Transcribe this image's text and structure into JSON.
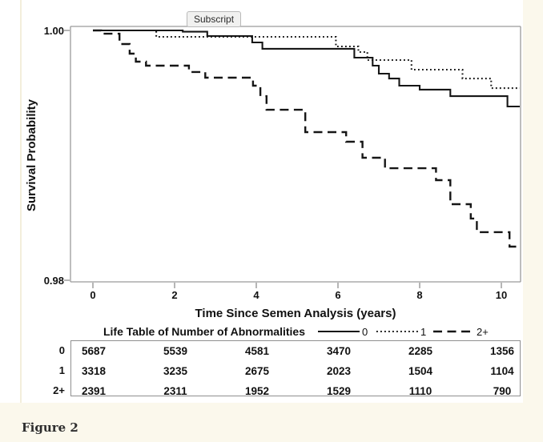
{
  "tooltip": {
    "label": "Subscript"
  },
  "caption": {
    "label": "Figure 2"
  },
  "chart_data": {
    "type": "line",
    "subtype": "kaplan-meier-step",
    "title": "",
    "xlabel": "Time Since Semen Analysis (years)",
    "ylabel": "Survival Probability",
    "xlim": [
      -0.55,
      10.47
    ],
    "ylim": [
      0.98,
      1.0
    ],
    "xticks": [
      0,
      2,
      4,
      6,
      8,
      10
    ],
    "yticks": [
      1.0,
      0.98
    ],
    "xtick_labels": [
      "0",
      "2",
      "4",
      "6",
      "8",
      "10"
    ],
    "ytick_labels": [
      "1.00",
      "0.98"
    ],
    "grid": false,
    "legend_position": "below-axis",
    "legend_title": "Life Table of Number of Abnormalities",
    "line_color": "#161616",
    "series": [
      {
        "name": "0",
        "style": "solid",
        "points": [
          [
            0,
            1.0
          ],
          [
            2.2,
            0.9999
          ],
          [
            2.8,
            0.99955
          ],
          [
            3.9,
            0.99904
          ],
          [
            4.15,
            0.99853
          ],
          [
            6.4,
            0.99782
          ],
          [
            6.85,
            0.99718
          ],
          [
            7.0,
            0.99654
          ],
          [
            7.25,
            0.99615
          ],
          [
            7.5,
            0.99558
          ],
          [
            8.0,
            0.99526
          ],
          [
            8.75,
            0.99474
          ],
          [
            10.15,
            0.99391
          ]
        ]
      },
      {
        "name": "1",
        "style": "dotted",
        "points": [
          [
            0,
            1.0
          ],
          [
            1.55,
            0.99949
          ],
          [
            5.95,
            0.99872
          ],
          [
            6.5,
            0.99827
          ],
          [
            6.72,
            0.99763
          ],
          [
            7.8,
            0.99686
          ],
          [
            9.05,
            0.99615
          ],
          [
            9.75,
            0.99538
          ]
        ]
      },
      {
        "name": "2+",
        "style": "dashed",
        "points": [
          [
            0,
            1.0
          ],
          [
            0.2,
            0.99974
          ],
          [
            0.65,
            0.99891
          ],
          [
            0.9,
            0.99814
          ],
          [
            1.05,
            0.9975
          ],
          [
            1.3,
            0.99718
          ],
          [
            2.35,
            0.99667
          ],
          [
            2.75,
            0.99622
          ],
          [
            3.92,
            0.99558
          ],
          [
            4.1,
            0.99474
          ],
          [
            4.25,
            0.99365
          ],
          [
            5.2,
            0.99186
          ],
          [
            6.2,
            0.99109
          ],
          [
            6.6,
            0.98981
          ],
          [
            7.15,
            0.98897
          ],
          [
            8.4,
            0.98801
          ],
          [
            8.75,
            0.98609
          ],
          [
            9.25,
            0.98494
          ],
          [
            9.4,
            0.98385
          ],
          [
            10.2,
            0.98269
          ]
        ]
      }
    ],
    "end_t": 10.47,
    "at_risk": {
      "times": [
        0,
        2,
        4,
        6,
        8,
        10
      ],
      "rows": [
        {
          "label": "0",
          "values": [
            "5687",
            "5539",
            "4581",
            "3470",
            "2285",
            "1356"
          ]
        },
        {
          "label": "1",
          "values": [
            "3318",
            "3235",
            "2675",
            "2023",
            "1504",
            "1104"
          ]
        },
        {
          "label": "2+",
          "values": [
            "2391",
            "2311",
            "1952",
            "1529",
            "1110",
            "790"
          ]
        }
      ]
    }
  }
}
